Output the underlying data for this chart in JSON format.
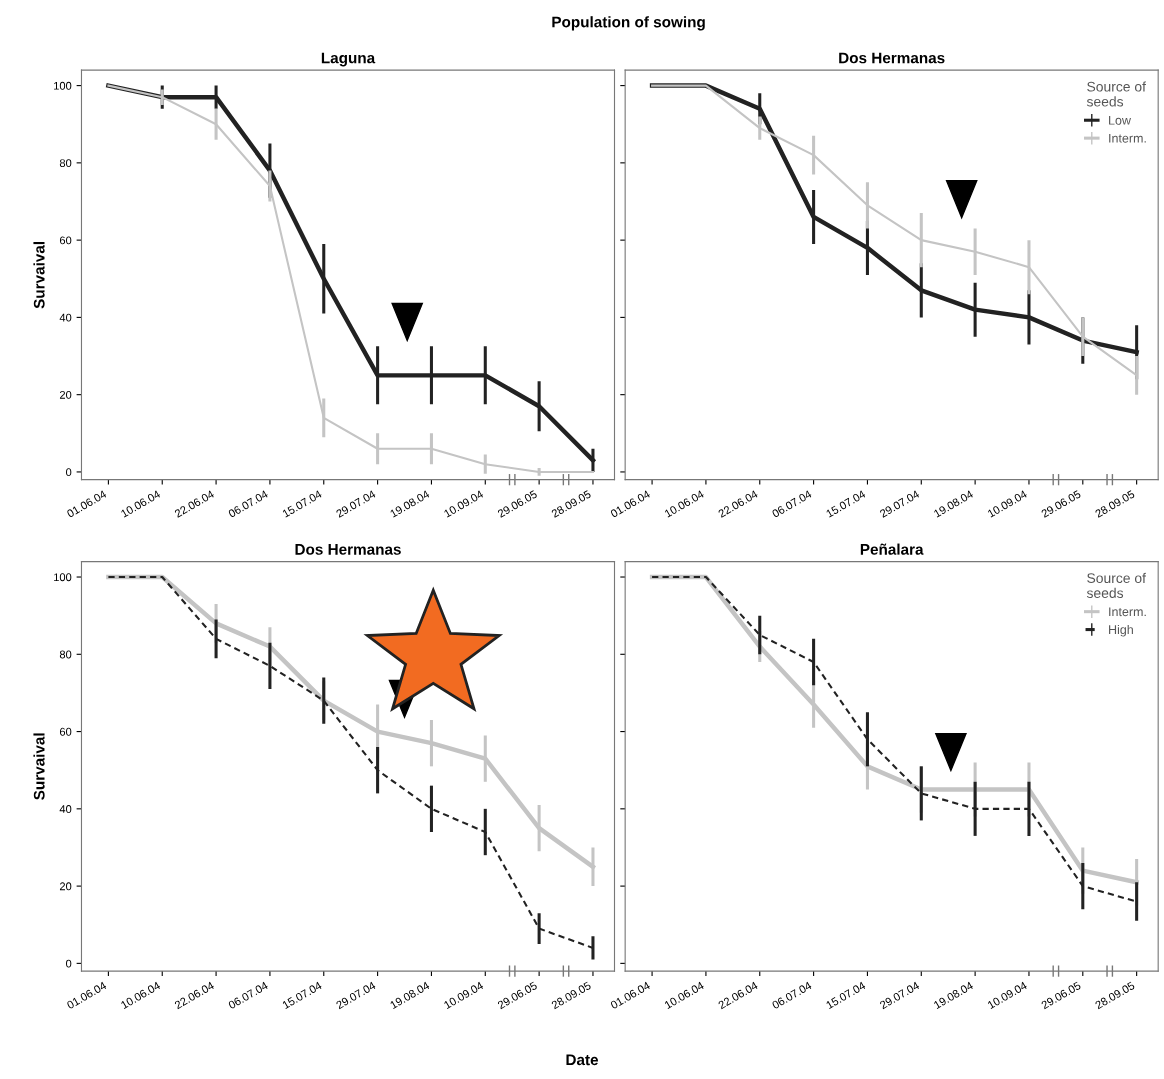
{
  "chart_data": [
    {
      "type": "line",
      "title": "Laguna",
      "ylabel": "Survaival",
      "annotations": [
        "Population of sowing"
      ],
      "categories": [
        "01.06.04",
        "10.06.04",
        "22.06.04",
        "06.07.04",
        "15.07.04",
        "29.07.04",
        "19.08.04",
        "10.09.04",
        "29.06.05",
        "28.09.05"
      ],
      "series": [
        {
          "color": "#222222",
          "line_style": "solid",
          "values": [
            100,
            97,
            97,
            78,
            50,
            25,
            25,
            25,
            17,
            3
          ],
          "errors": [
            null,
            3,
            3,
            7,
            9,
            7.5,
            7.5,
            7.5,
            6.5,
            3
          ]
        },
        {
          "color": "#c4c4c4",
          "line_style": "solid",
          "values": [
            100,
            97,
            90,
            74,
            14,
            6,
            6,
            2,
            0,
            0
          ],
          "errors": [
            null,
            2,
            4,
            4,
            5,
            4,
            4,
            2.5,
            1,
            null
          ]
        }
      ],
      "ylim": [
        -2,
        104
      ],
      "yticks": [
        0,
        20,
        40,
        60,
        80,
        100
      ],
      "grid": false,
      "legend": false,
      "marker": "none"
    },
    {
      "type": "line",
      "title": "Dos Hermanas",
      "legend_title": "Source of\nseeds",
      "categories": [
        "01.06.04",
        "10.06.04",
        "22.06.04",
        "06.07.04",
        "15.07.04",
        "29.07.04",
        "19.08.04",
        "10.09.04",
        "29.06.05",
        "28.09.05"
      ],
      "series": [
        {
          "name": "Low",
          "color": "#222222",
          "line_style": "solid",
          "values": [
            100,
            100,
            94,
            66,
            58,
            47,
            42,
            40,
            34,
            31
          ],
          "errors": [
            null,
            null,
            4,
            7,
            7,
            7,
            7,
            7,
            6,
            7
          ]
        },
        {
          "name": "Interm.",
          "color": "#c4c4c4",
          "line_style": "solid",
          "values": [
            100,
            100,
            89,
            82,
            69,
            60,
            57,
            53,
            35,
            25
          ],
          "errors": [
            null,
            null,
            3,
            5,
            6,
            7,
            6,
            7,
            5,
            5
          ]
        }
      ],
      "ylim": [
        -2,
        104
      ],
      "yticks": [
        0,
        20,
        40,
        60,
        80,
        100
      ],
      "tick_labels": "x",
      "grid": false,
      "legend": "top right",
      "marker": "none"
    },
    {
      "type": "line",
      "title": "Dos Hermanas",
      "ylabel": "Survaival",
      "xlabel": "Date",
      "categories": [
        "01.06.04",
        "10.06.04",
        "22.06.04",
        "06.07.04",
        "15.07.04",
        "29.07.04",
        "19.08.04",
        "10.09.04",
        "29.06.05",
        "28.09.05"
      ],
      "series": [
        {
          "color": "#c4c4c4",
          "line_style": "solid",
          "values": [
            100,
            100,
            88,
            82,
            68,
            60,
            57,
            53,
            35,
            25
          ],
          "errors": [
            null,
            null,
            5,
            5,
            5,
            7,
            6,
            6,
            6,
            5
          ]
        },
        {
          "color": "#222222",
          "line_style": "dashed",
          "values": [
            100,
            100,
            84,
            77,
            68,
            50,
            40,
            34,
            9,
            4
          ],
          "errors": [
            null,
            null,
            5,
            6,
            6,
            6,
            6,
            6,
            4,
            3
          ]
        }
      ],
      "ylim": [
        -2,
        104
      ],
      "yticks": [
        0,
        20,
        40,
        60,
        80,
        100
      ],
      "grid": false,
      "legend": false,
      "marker": "none"
    },
    {
      "type": "line",
      "title": "Peñalara",
      "legend_title": "Source of\nseeds",
      "categories": [
        "01.06.04",
        "10.06.04",
        "22.06.04",
        "06.07.04",
        "15.07.04",
        "29.07.04",
        "19.08.04",
        "10.09.04",
        "29.06.05",
        "28.09.05"
      ],
      "series": [
        {
          "name": "Interm.",
          "color": "#c4c4c4",
          "line_style": "solid",
          "values": [
            100,
            100,
            82,
            67,
            51,
            45,
            45,
            45,
            24,
            21
          ],
          "errors": [
            null,
            null,
            4,
            6,
            6,
            6,
            7,
            7,
            6,
            6
          ]
        },
        {
          "name": "High",
          "color": "#222222",
          "line_style": "dashed",
          "values": [
            100,
            100,
            85,
            78,
            58,
            44,
            40,
            40,
            20,
            16
          ],
          "errors": [
            null,
            null,
            5,
            6,
            7,
            7,
            7,
            7,
            6,
            5
          ]
        }
      ],
      "ylim": [
        -2,
        104
      ],
      "yticks": [
        0,
        20,
        40,
        60,
        80,
        100
      ],
      "tick_labels": "x",
      "grid": false,
      "legend": "top right",
      "marker": "none"
    }
  ]
}
